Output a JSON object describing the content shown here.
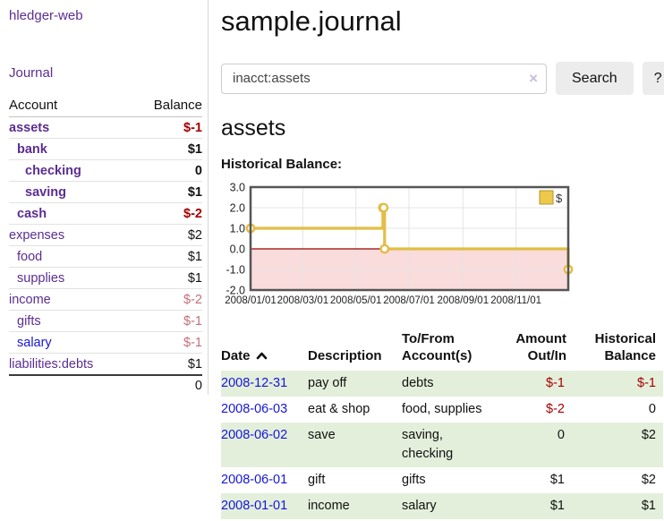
{
  "sidebar": {
    "brand": "hledger-web",
    "journal_link": "Journal",
    "accounts_table": {
      "account_header": "Account",
      "balance_header": "Balance",
      "rows": [
        {
          "name": "assets",
          "balance": "$-1",
          "depth": 1,
          "bold": true,
          "balance_class": "neg-strong",
          "link_color": "purple"
        },
        {
          "name": "bank",
          "balance": "$1",
          "depth": 2,
          "bold": true,
          "balance_class": "",
          "link_color": "purple"
        },
        {
          "name": "checking",
          "balance": "0",
          "depth": 3,
          "bold": true,
          "balance_class": "",
          "link_color": "purple"
        },
        {
          "name": "saving",
          "balance": "$1",
          "depth": 3,
          "bold": true,
          "balance_class": "",
          "link_color": "purple"
        },
        {
          "name": "cash",
          "balance": "$-2",
          "depth": 2,
          "bold": true,
          "balance_class": "neg-strong",
          "link_color": "purple"
        },
        {
          "name": "expenses",
          "balance": "$2",
          "depth": 1,
          "bold": false,
          "balance_class": "",
          "link_color": "purple"
        },
        {
          "name": "food",
          "balance": "$1",
          "depth": 2,
          "bold": false,
          "balance_class": "",
          "link_color": "purple"
        },
        {
          "name": "supplies",
          "balance": "$1",
          "depth": 2,
          "bold": false,
          "balance_class": "",
          "link_color": "purple"
        },
        {
          "name": "income",
          "balance": "$-2",
          "depth": 1,
          "bold": false,
          "balance_class": "neg-soft",
          "link_color": "purple"
        },
        {
          "name": "gifts",
          "balance": "$-1",
          "depth": 2,
          "bold": false,
          "balance_class": "neg-soft",
          "link_color": "purple"
        },
        {
          "name": "salary",
          "balance": "$-1",
          "depth": 2,
          "bold": false,
          "balance_class": "neg-soft",
          "link_color": "blue"
        },
        {
          "name": "liabilities:debts",
          "balance": "$1",
          "depth": 1,
          "bold": false,
          "balance_class": "",
          "link_color": "purple"
        }
      ],
      "total": "0"
    }
  },
  "header": {
    "title": "sample.journal"
  },
  "search": {
    "value": "inacct:assets",
    "clear_icon": "×",
    "search_label": "Search",
    "help_label": "?"
  },
  "account_page": {
    "title": "assets",
    "chart_label": "Historical Balance:"
  },
  "chart_data": {
    "type": "line",
    "subtype": "step-after",
    "title": "Historical Balance",
    "xlabel": "",
    "ylabel": "",
    "ylim": [
      -2,
      3
    ],
    "y_ticks": [
      3.0,
      2.0,
      1.0,
      0.0,
      -1.0,
      -2.0
    ],
    "x_range_days": [
      0,
      365
    ],
    "x_ticks": [
      {
        "label": "2008/01/01",
        "day": 0
      },
      {
        "label": "2008/03/01",
        "day": 60
      },
      {
        "label": "2008/05/01",
        "day": 121
      },
      {
        "label": "2008/07/01",
        "day": 182
      },
      {
        "label": "2008/09/01",
        "day": 244
      },
      {
        "label": "2008/11/01",
        "day": 305
      }
    ],
    "grid": true,
    "legend": {
      "label": "$",
      "position": "top-right"
    },
    "series": [
      {
        "name": "$",
        "color": "#e3bd45",
        "points": [
          {
            "date": "2008/01/01",
            "day": 0,
            "value": 1
          },
          {
            "date": "2008/06/01",
            "day": 152,
            "value": 2
          },
          {
            "date": "2008/06/02",
            "day": 153,
            "value": 2
          },
          {
            "date": "2008/06/03",
            "day": 154,
            "value": 0
          },
          {
            "date": "2008/12/31",
            "day": 365,
            "value": -1
          }
        ]
      }
    ],
    "negative_region_color": "#fadcdc",
    "zero_line_color": "#990000"
  },
  "transactions": {
    "headers": {
      "date": "Date",
      "description": "Description",
      "accounts": "To/From Account(s)",
      "amount": "Amount Out/In",
      "balance": "Historical Balance"
    },
    "rows": [
      {
        "date": "2008-12-31",
        "description": "pay off",
        "accounts": "debts",
        "amount": "$-1",
        "amount_neg": true,
        "balance": "$-1",
        "balance_neg": true
      },
      {
        "date": "2008-06-03",
        "description": "eat & shop",
        "accounts": "food, supplies",
        "amount": "$-2",
        "amount_neg": true,
        "balance": "0",
        "balance_neg": false
      },
      {
        "date": "2008-06-02",
        "description": "save",
        "accounts": "saving, checking",
        "amount": "0",
        "amount_neg": false,
        "balance": "$2",
        "balance_neg": false
      },
      {
        "date": "2008-06-01",
        "description": "gift",
        "accounts": "gifts",
        "amount": "$1",
        "amount_neg": false,
        "balance": "$2",
        "balance_neg": false
      },
      {
        "date": "2008-01-01",
        "description": "income",
        "accounts": "salary",
        "amount": "$1",
        "amount_neg": false,
        "balance": "$1",
        "balance_neg": false
      }
    ]
  },
  "colors": {
    "purple_link": "#5c2d91",
    "blue_link": "#1616d9",
    "negative_strong": "#a40000",
    "negative_soft": "#c17179",
    "row_stripe_green": "#e3efdb",
    "chart_line_yellow": "#e3bd45",
    "chart_negative_pink": "#fadcdc",
    "legend_square_fill": "#ecc94b"
  }
}
